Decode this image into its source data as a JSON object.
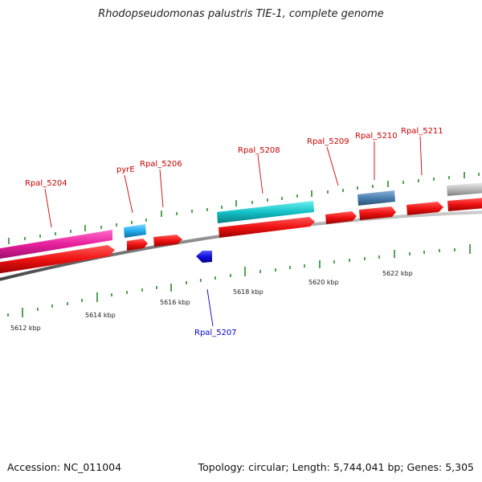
{
  "title": "Rhodopseudomonas palustris TIE-1, complete genome",
  "footer": {
    "accession": "Accession: NC_011004",
    "summary": "Topology: circular; Length: 5,744,041 bp; Genes: 5,305"
  },
  "kbp_labels": [
    "5612 kbp",
    "5614 kbp",
    "5616 kbp",
    "5618 kbp",
    "5620 kbp",
    "5622 kbp"
  ],
  "gene_labels": {
    "rpal_5204": "Rpal_5204",
    "pyre": "pyrE",
    "rpal_5206": "Rpal_5206",
    "rpal_5207": "Rpal_5207",
    "rpal_5208": "Rpal_5208",
    "rpal_5209": "Rpal_5209",
    "rpal_5210": "Rpal_5210",
    "rpal_5211": "Rpal_5211"
  },
  "colors": {
    "forward_label": "#cc0000",
    "reverse_label": "#0000cc",
    "cds": "#ee1111",
    "magenta": "#e61e9a",
    "cyan": "#13c2c8",
    "light_blue": "#22aaee",
    "steel_blue": "#4a7fb0",
    "gray": "#bbbbbb",
    "reverse_feature": "#1010dd",
    "tick": "#2a8a2a",
    "backbone": "#808080"
  }
}
